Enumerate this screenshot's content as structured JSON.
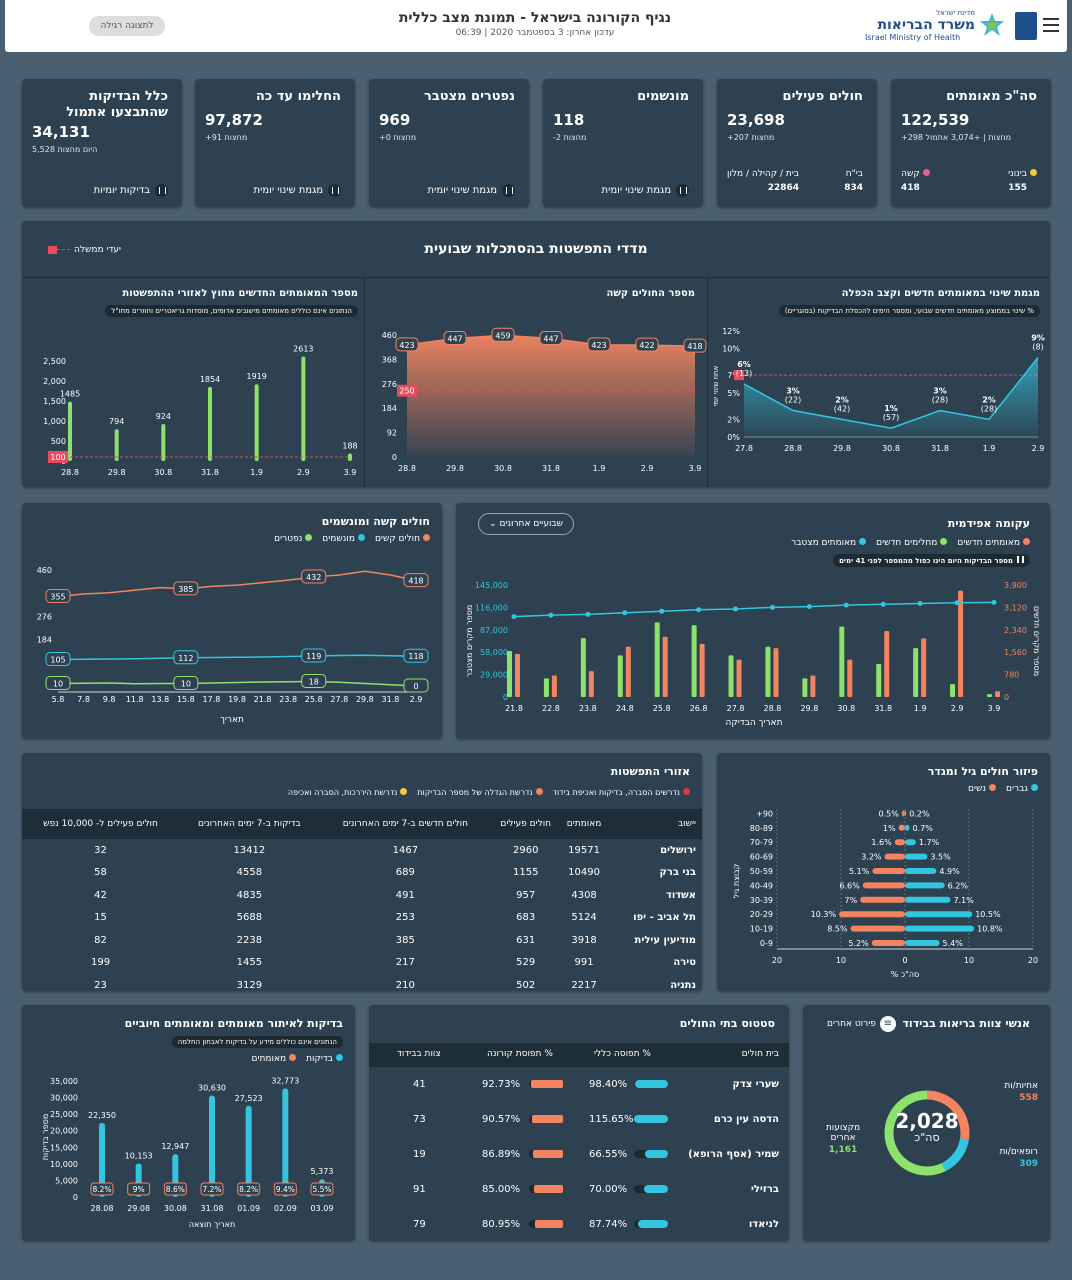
{
  "header": {
    "title": "נגיף הקורונה בישראל - תמונת מצב כללית",
    "updated": "עדכון אחרון: 3 בספטמבר 2020 | 06:39",
    "view_button": "לתצוגה רגילה",
    "logo_small": "מדינת ישראל",
    "logo_main": "משרד הבריאות",
    "logo_en": "Israel Ministry of Health"
  },
  "kpis": {
    "confirmed": {
      "title": "סה\"כ מאומתים",
      "value": "122,539",
      "sub": "+298 מחצות | +3,074 אתמול",
      "c1_label": "קשה",
      "c1_value": "418",
      "c2_label": "בינוני",
      "c2_value": "155"
    },
    "active": {
      "title": "חולים פעילים",
      "value": "23,698",
      "sub": "+207 מחצות",
      "c1_label": "בי\"ח",
      "c1_value": "834",
      "c2_label": "בית / קהילה / מלון",
      "c2_value": "22864"
    },
    "ventilated": {
      "title": "מונשמים",
      "value": "118",
      "sub": "-2 מחצות",
      "btn": "מגמת שינוי יומית"
    },
    "deaths": {
      "title": "נפטרים מצטבר",
      "value": "969",
      "sub": "+0 מחצות",
      "btn": "מגמת שינוי יומית"
    },
    "recovered": {
      "title": "החלימו עד כה",
      "value": "97,872",
      "sub": "+91 מחצות",
      "btn": "מגמת שינוי יומית"
    },
    "tests": {
      "title": "כלל הבדיקות שהתבצעו אתמול",
      "value": "34,131",
      "sub": "5,528 היום מחצות",
      "btn": "בדיקות יומיות"
    }
  },
  "weekly": {
    "title": "מדדי התפשטות בהסתכלות שבועית",
    "goal_label": "יעדי ממשלה",
    "chart1": {
      "title": "מגמת שינוי במאומתים חדשים וקצב הכפלה",
      "note": "% שינוי בממוצע מאומתים חדשים שבועי, ומספר הימים להכפלת הבדיקות (בסוגריים)",
      "ylabel": "אחוז שינוי יומי",
      "yticks": [
        "0%",
        "2%",
        "5%",
        "7%",
        "10%",
        "12%"
      ]
    },
    "chart2": {
      "title": "מספר החולים קשה",
      "yticks": [
        "0",
        "92",
        "184",
        "276",
        "368",
        "460"
      ]
    },
    "chart3": {
      "title": "מספר המאומתים החדשים מחוץ לאזורי ההתפשטות",
      "note": "הנתונים אינם כוללים מאומתים מישובים אדומים, מוסדות גריאטריים וחוזרים מחו\"ל",
      "yticks": [
        "0",
        "500",
        "1,000",
        "1,500",
        "2,000",
        "2,500"
      ]
    }
  },
  "severe_panel": {
    "title": "חולים קשה ומונשמים",
    "legend": [
      "חולים קשים",
      "מונשמים",
      "נפטרים"
    ],
    "xlabel": "תאריך",
    "yticks": [
      "0",
      "",
      "184",
      "276",
      "",
      "460"
    ]
  },
  "epi_panel": {
    "title": "עקומה אפידמית",
    "dropdown": "שבועיים אחרונים",
    "legend": [
      "מאומתים חדשים",
      "מחלימים חדשים",
      "מאומתים מצטבר"
    ],
    "note": "מספר הבדיקות היום הינו כפול מהמספר לפני 41 ימים",
    "xlabel": "תאריך הבדיקה",
    "yleft_label": "מספר מקרים מצטבר",
    "yright_label": "מספר מקרים חדשים",
    "yleft": [
      "0",
      "29,000",
      "58,000",
      "87,000",
      "116,000",
      "145,000"
    ],
    "yright": [
      "0",
      "780",
      "1,560",
      "2,340",
      "3,120",
      "3,900"
    ]
  },
  "regions": {
    "title": "אזורי התפשטות",
    "legend": [
      "נדרשים הסברה, בדיקות ואכיפת בידוד",
      "נדרשת הגדלה של מספר הבדיקות",
      "נדרשת היררכות, הסברה ואכיפה"
    ],
    "headers": [
      "יישוב",
      "מאומתים",
      "חולים פעילים",
      "חולים חדשים ב-7 ימים האחרונים",
      "בדיקות ב-7 ימים האחרונים",
      "חולים פעילים ל- 10,000 נפש"
    ],
    "rows": [
      [
        "ירושלים",
        "19571",
        "2960",
        "1467",
        "13412",
        "32"
      ],
      [
        "בני ברק",
        "10490",
        "1155",
        "689",
        "4558",
        "58"
      ],
      [
        "אשדוד",
        "4308",
        "957",
        "491",
        "4835",
        "42"
      ],
      [
        "תל אביב - יפו",
        "5124",
        "683",
        "253",
        "5688",
        "15"
      ],
      [
        "מודיעין עילית",
        "3918",
        "631",
        "385",
        "2238",
        "82"
      ],
      [
        "טירה",
        "991",
        "529",
        "217",
        "1455",
        "199"
      ],
      [
        "נתניה",
        "2217",
        "502",
        "210",
        "3129",
        "23"
      ]
    ]
  },
  "age_panel": {
    "title": "פיזור חולים גיל ומגדר",
    "legend": [
      "גברים",
      "נשים"
    ],
    "ylabel": "קבוצת גיל",
    "xlabel": "% סה\"כ",
    "xticks": [
      "20",
      "10",
      "0",
      "10",
      "20"
    ]
  },
  "tests_panel": {
    "title": "בדיקות לאיתור מאומתים ומאומתים חיוביים",
    "note": "הנתונים אינם כוללים מידע על בדיקות לאבחון החלמה",
    "legend": [
      "בדיקות",
      "מאומתים"
    ],
    "xlabel": "תאריך תוצאה",
    "ylabel": "מספר בדיקות",
    "yticks": [
      "0",
      "5,000",
      "10,000",
      "15,000",
      "20,000",
      "25,000",
      "30,000",
      "35,000"
    ]
  },
  "hospitals": {
    "title": "סטטוס בתי החולים",
    "headers": [
      "בית חולים",
      "% תפוסה כללי",
      "% תפוסת קורונה",
      "צוות בבידוד"
    ],
    "rows": [
      {
        "name": "שערי צדק",
        "general": "98.40%",
        "g": 0.98,
        "corona": "92.73%",
        "c": 0.93,
        "staff": "41"
      },
      {
        "name": "הדסה עין כרם",
        "general": "115.65%",
        "g": 1,
        "corona": "90.57%",
        "c": 0.91,
        "staff": "73"
      },
      {
        "name": "שמיר (אסף הרופא)",
        "general": "66.55%",
        "g": 0.67,
        "corona": "86.89%",
        "c": 0.87,
        "staff": "19"
      },
      {
        "name": "ברזילי",
        "general": "70.00%",
        "g": 0.7,
        "corona": "85.00%",
        "c": 0.85,
        "staff": "91"
      },
      {
        "name": "לניאדו",
        "general": "87.74%",
        "g": 0.88,
        "corona": "80.95%",
        "c": 0.81,
        "staff": "79"
      }
    ]
  },
  "staff": {
    "title": "אנשי צוות בריאות בבידוד",
    "details_btn": "פירוט אחרים",
    "total": "2,028",
    "total_label": "סה\"כ",
    "nurses_label": "אחיות/ות",
    "nurses": "558",
    "doctors_label": "רופאים/ות",
    "doctors": "309",
    "others_label": "מקצועות אחרים",
    "others": "1,161"
  },
  "chart_data": [
    {
      "type": "line",
      "title": "מגמת שינוי במאומתים חדשים וקצב הכפלה",
      "x": [
        "27.8",
        "28.8",
        "29.8",
        "30.8",
        "31.8",
        "1.9",
        "2.9"
      ],
      "values": [
        6,
        3,
        2,
        1,
        3,
        2,
        9
      ],
      "labels": [
        "6%",
        "3%",
        "2%",
        "1%",
        "3%",
        "2%",
        "9%"
      ],
      "doubling": [
        "(13)",
        "(22)",
        "(42)",
        "(57)",
        "(28)",
        "(28)",
        "(8)"
      ],
      "goal": 7,
      "ylim": [
        0,
        12
      ]
    },
    {
      "type": "area",
      "title": "מספר החולים קשה",
      "x": [
        "28.8",
        "29.8",
        "30.8",
        "31.8",
        "1.9",
        "2.9",
        "3.9"
      ],
      "values": [
        423,
        447,
        459,
        447,
        423,
        422,
        418
      ],
      "goal": 250,
      "ylim": [
        0,
        460
      ]
    },
    {
      "type": "bar",
      "title": "מספר המאומתים החדשים מחוץ לאזורי ההתפשטות",
      "categories": [
        "28.8",
        "29.8",
        "30.8",
        "31.8",
        "1.9",
        "2.9",
        "3.9"
      ],
      "values": [
        1485,
        794,
        924,
        1854,
        1919,
        2613,
        188
      ],
      "goal": 100,
      "ylim": [
        0,
        2500
      ]
    },
    {
      "type": "line",
      "title": "חולים קשה ומונשמים",
      "x": [
        "5.8",
        "7.8",
        "9.8",
        "11.8",
        "13.8",
        "15.8",
        "17.8",
        "19.8",
        "21.8",
        "23.8",
        "25.8",
        "27.8",
        "29.8",
        "31.8",
        "2.9"
      ],
      "series": [
        {
          "name": "חולים קשים",
          "values": [
            355,
            365,
            370,
            380,
            390,
            385,
            395,
            400,
            410,
            420,
            432,
            440,
            455,
            440,
            418
          ],
          "labels": {
            "0": "355",
            "5": "385",
            "10": "432",
            "14": "418"
          }
        },
        {
          "name": "מונשמים",
          "values": [
            105,
            106,
            107,
            108,
            110,
            112,
            113,
            114,
            115,
            117,
            119,
            121,
            122,
            120,
            118
          ],
          "labels": {
            "0": "105",
            "5": "112",
            "10": "119",
            "14": "118"
          }
        },
        {
          "name": "נפטרים",
          "values": [
            10,
            11,
            12,
            9,
            10,
            10,
            12,
            14,
            16,
            17,
            18,
            15,
            10,
            5,
            0
          ],
          "labels": {
            "0": "10",
            "5": "10",
            "10": "18",
            "14": "0"
          }
        }
      ],
      "ylim": [
        0,
        460
      ]
    },
    {
      "type": "bar",
      "title": "עקומה אפידמית",
      "categories": [
        "21.8",
        "22.8",
        "23.8",
        "24.8",
        "25.8",
        "26.8",
        "27.8",
        "28.8",
        "29.8",
        "30.8",
        "31.8",
        "1.9",
        "2.9",
        "3.9"
      ],
      "series": [
        {
          "name": "מאומתים חדשים",
          "values": [
            1500,
            750,
            900,
            1750,
            2100,
            1850,
            1300,
            1700,
            750,
            1300,
            2300,
            2040,
            3700,
            200
          ]
        },
        {
          "name": "מחלימים חדשים",
          "values": [
            1600,
            650,
            2050,
            1450,
            2600,
            2500,
            1450,
            1750,
            650,
            2450,
            1150,
            1700,
            450,
            100
          ]
        },
        {
          "name": "מאומתים מצטבר",
          "values": [
            104000,
            106000,
            107000,
            109000,
            111000,
            113000,
            114000,
            116000,
            117000,
            119000,
            120000,
            121000,
            122000,
            122500
          ]
        }
      ],
      "yleft": [
        0,
        145000
      ],
      "yright": [
        0,
        3900
      ]
    },
    {
      "type": "bar",
      "title": "פיזור חולים גיל ומגדר",
      "categories": [
        "0-9",
        "10-19",
        "20-29",
        "30-39",
        "40-49",
        "50-59",
        "60-69",
        "70-79",
        "80-89",
        "+90"
      ],
      "series": [
        {
          "name": "גברים",
          "values": [
            5.4,
            10.8,
            10.5,
            7.1,
            6.2,
            4.9,
            3.5,
            1.7,
            0.7,
            0.2
          ]
        },
        {
          "name": "נשים",
          "values": [
            5.2,
            8.5,
            10.3,
            7,
            6.6,
            5.1,
            3.2,
            1.6,
            1,
            0.5
          ]
        }
      ],
      "xlim": [
        -20,
        20
      ]
    },
    {
      "type": "bar",
      "title": "בדיקות לאיתור מאומתים ומאומתים חיוביים",
      "categories": [
        "28.08",
        "29.08",
        "30.08",
        "31.08",
        "01.09",
        "02.09",
        "03.09"
      ],
      "series": [
        {
          "name": "בדיקות",
          "values": [
            22350,
            10153,
            12947,
            30630,
            27523,
            32773,
            5373
          ]
        }
      ],
      "positive_pct": [
        "8.2%",
        "9%",
        "8.6%",
        "7.2%",
        "8.2%",
        "9.4%",
        "5.5%"
      ],
      "ylim": [
        0,
        35000
      ]
    },
    {
      "type": "pie",
      "title": "אנשי צוות בריאות בבידוד",
      "categories": [
        "אחיות/ות",
        "רופאים/ות",
        "מקצועות אחרים"
      ],
      "values": [
        558,
        309,
        1161
      ]
    }
  ]
}
